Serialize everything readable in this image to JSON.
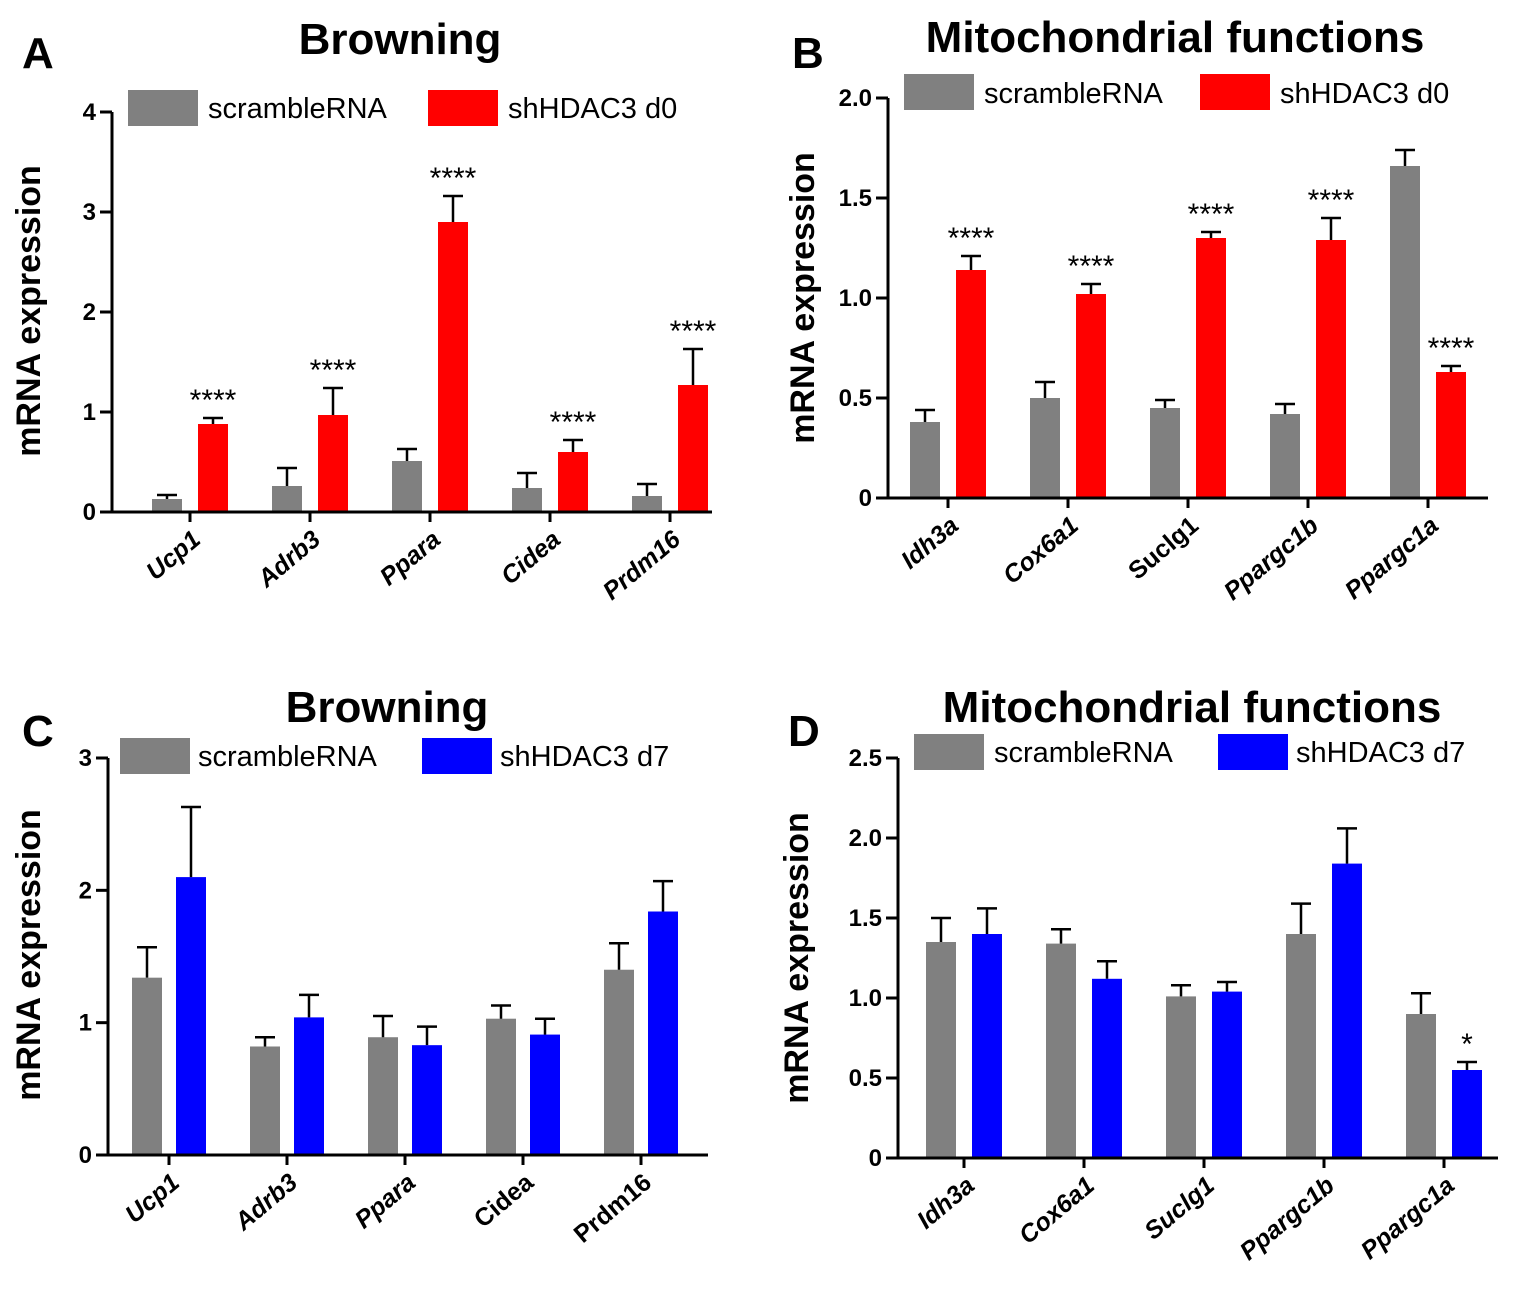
{
  "colors": {
    "scramble": "#808080",
    "shHDAC3_d0": "#ff0000",
    "shHDAC3_d7": "#0000ff",
    "axis": "#000000"
  },
  "chart_data": [
    {
      "id": "A",
      "panel_label": "A",
      "type": "bar",
      "title": "Browning",
      "ylabel": "mRNA expression",
      "xlabel": "",
      "ylim": [
        0,
        4
      ],
      "yticks": [
        "0",
        "1",
        "2",
        "3",
        "4"
      ],
      "categories": [
        "Ucp1",
        "Adrb3",
        "Ppara",
        "Cidea",
        "Prdm16"
      ],
      "italic_categories": [
        true,
        true,
        true,
        true,
        true
      ],
      "legend_position": "top",
      "series": [
        {
          "name": "scrambleRNA",
          "color": "#808080",
          "values": [
            0.13,
            0.26,
            0.51,
            0.24,
            0.16
          ],
          "errors": [
            0.04,
            0.18,
            0.12,
            0.15,
            0.12
          ],
          "stars": [
            "",
            "",
            "",
            "",
            ""
          ]
        },
        {
          "name": "shHDAC3 d0",
          "color": "#ff0000",
          "values": [
            0.88,
            0.97,
            2.9,
            0.6,
            1.27
          ],
          "errors": [
            0.06,
            0.27,
            0.26,
            0.12,
            0.36
          ],
          "stars": [
            "****",
            "****",
            "****",
            "****",
            "****"
          ]
        }
      ]
    },
    {
      "id": "B",
      "panel_label": "B",
      "type": "bar",
      "title": "Mitochondrial functions",
      "ylabel": "mRNA expression",
      "xlabel": "",
      "ylim": [
        0,
        2
      ],
      "yticks": [
        "0",
        "0.5",
        "1.0",
        "1.5",
        "2.0"
      ],
      "categories": [
        "Idh3a",
        "Cox6a1",
        "Suclg1",
        "Ppargc1b",
        "Ppargc1a"
      ],
      "italic_categories": [
        true,
        true,
        false,
        true,
        true
      ],
      "legend_position": "top",
      "series": [
        {
          "name": "scrambleRNA",
          "color": "#808080",
          "values": [
            0.38,
            0.5,
            0.45,
            0.42,
            1.66
          ],
          "errors": [
            0.06,
            0.08,
            0.04,
            0.05,
            0.08
          ],
          "stars": [
            "",
            "",
            "",
            "",
            ""
          ]
        },
        {
          "name": "shHDAC3 d0",
          "color": "#ff0000",
          "values": [
            1.14,
            1.02,
            1.3,
            1.29,
            0.63
          ],
          "errors": [
            0.07,
            0.05,
            0.03,
            0.11,
            0.03
          ],
          "stars": [
            "****",
            "****",
            "****",
            "****",
            "****"
          ]
        }
      ]
    },
    {
      "id": "C",
      "panel_label": "C",
      "type": "bar",
      "title": "Browning",
      "ylabel": "mRNA expression",
      "xlabel": "",
      "ylim": [
        0,
        3
      ],
      "yticks": [
        "0",
        "1",
        "2",
        "3"
      ],
      "categories": [
        "Ucp1",
        "Adrb3",
        "Ppara",
        "Cidea",
        "Prdm16"
      ],
      "italic_categories": [
        true,
        true,
        true,
        false,
        false
      ],
      "legend_position": "top",
      "series": [
        {
          "name": "scrambleRNA",
          "color": "#808080",
          "values": [
            1.34,
            0.82,
            0.89,
            1.03,
            1.4
          ],
          "errors": [
            0.23,
            0.07,
            0.16,
            0.1,
            0.2
          ],
          "stars": [
            "",
            "",
            "",
            "",
            ""
          ]
        },
        {
          "name": "shHDAC3 d7",
          "color": "#0000ff",
          "values": [
            2.1,
            1.04,
            0.83,
            0.91,
            1.84
          ],
          "errors": [
            0.53,
            0.17,
            0.14,
            0.12,
            0.23
          ],
          "stars": [
            "",
            "",
            "",
            "",
            ""
          ]
        }
      ]
    },
    {
      "id": "D",
      "panel_label": "D",
      "type": "bar",
      "title": "Mitochondrial functions",
      "ylabel": "mRNA expression",
      "xlabel": "",
      "ylim": [
        0,
        2.5
      ],
      "yticks": [
        "0",
        "0.5",
        "1.0",
        "1.5",
        "2.0",
        "2.5"
      ],
      "categories": [
        "Idh3a",
        "Cox6a1",
        "Suclg1",
        "Ppargc1b",
        "Ppargc1a"
      ],
      "italic_categories": [
        true,
        true,
        true,
        true,
        true
      ],
      "legend_position": "top",
      "series": [
        {
          "name": "scrambleRNA",
          "color": "#808080",
          "values": [
            1.35,
            1.34,
            1.01,
            1.4,
            0.9
          ],
          "errors": [
            0.15,
            0.09,
            0.07,
            0.19,
            0.13
          ],
          "stars": [
            "",
            "",
            "",
            "",
            ""
          ]
        },
        {
          "name": "shHDAC3 d7",
          "color": "#0000ff",
          "values": [
            1.4,
            1.12,
            1.04,
            1.84,
            0.55
          ],
          "errors": [
            0.16,
            0.11,
            0.06,
            0.22,
            0.05
          ],
          "stars": [
            "",
            "",
            "",
            "",
            "*"
          ]
        }
      ]
    }
  ]
}
